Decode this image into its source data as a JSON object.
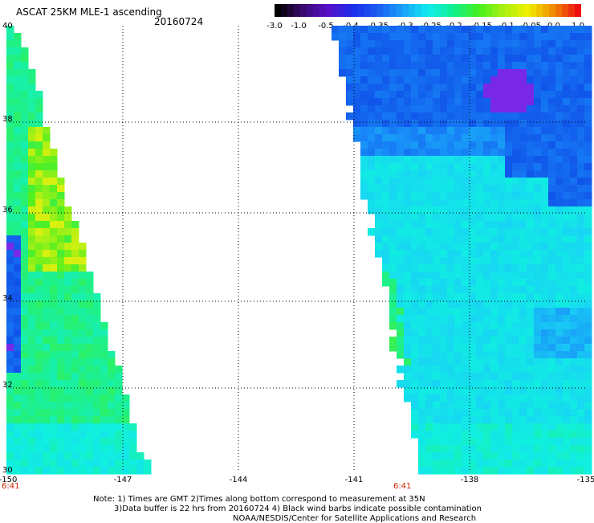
{
  "header": {
    "title": "ASCAT 25KM MLE-1 ascending",
    "date": "20160724"
  },
  "colorbar": {
    "labels": [
      "-3.0",
      "-1.0",
      "-0.5",
      "-0.4",
      "-0.35",
      "-0.3",
      "-0.25",
      "-0.2",
      "-0.15",
      "-0.1",
      "-0.05",
      "0.0",
      "1.0"
    ],
    "colors": [
      "#000000",
      "#3a0a6e",
      "#5a10c8",
      "#1a2ee8",
      "#1a5ef0",
      "#1aa0f8",
      "#10ecf0",
      "#10f090",
      "#40f020",
      "#a8f010",
      "#f0f000",
      "#f08c00",
      "#f01010"
    ]
  },
  "map": {
    "lat_labels": [
      "40",
      "38",
      "36",
      "34",
      "32",
      "30"
    ],
    "lon_labels": [
      "-150",
      "-147",
      "-144",
      "-141",
      "-138",
      "-135"
    ],
    "pass_times": [
      "6:41",
      "6:41"
    ]
  },
  "footer": {
    "line1": "Note: 1) Times are GMT 2)Times along bottom correspond to measurement at 35N",
    "line2": "3)Data buffer is 22 hrs from 20160724 4) Black wind barbs indicate possible contamination",
    "line3": "NOAA/NESDIS/Center for Satellite Applications and Research"
  }
}
